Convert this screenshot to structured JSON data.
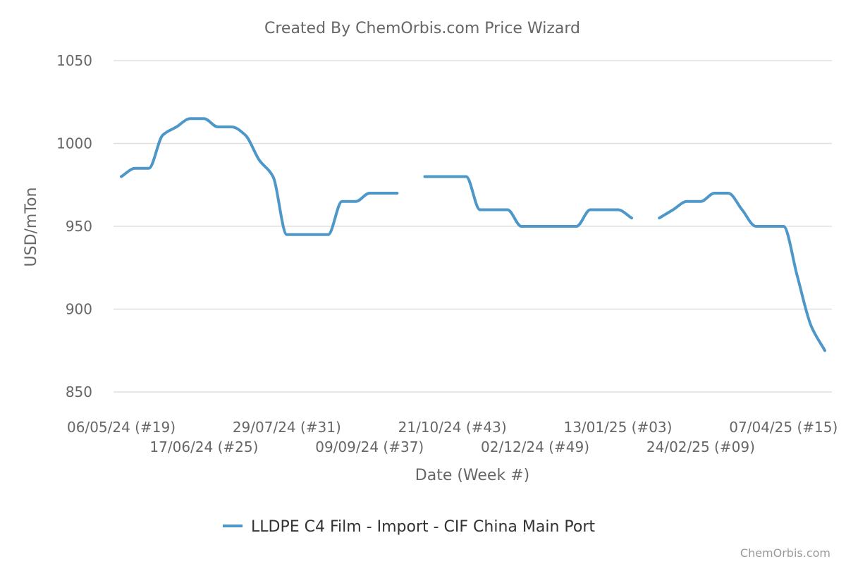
{
  "chart_data": {
    "type": "line",
    "title": "Created By ChemOrbis.com Price Wizard",
    "xlabel": "Date (Week #)",
    "ylabel": "USD/mTon",
    "ylim": [
      850,
      1050
    ],
    "yticks": [
      850,
      900,
      950,
      1000,
      1050
    ],
    "grid": true,
    "legend_position": "bottom",
    "credit": "ChemOrbis.com",
    "x_tick_labels": [
      "06/05/24 (#19)",
      "17/06/24 (#25)",
      "29/07/24 (#31)",
      "09/09/24 (#37)",
      "21/10/24 (#43)",
      "02/12/24 (#49)",
      "13/01/25 (#03)",
      "24/02/25 (#09)",
      "07/04/25 (#15)"
    ],
    "series": [
      {
        "name": "LLDPE C4 Film - Import - CIF China Main Port",
        "color": "#4e97c9",
        "points": [
          {
            "week": "06/05/24 (#19)",
            "value": 980
          },
          {
            "week": "13/05/24 (#20)",
            "value": 985
          },
          {
            "week": "20/05/24 (#21)",
            "value": 985
          },
          {
            "week": "27/05/24 (#22)",
            "value": 1005
          },
          {
            "week": "03/06/24 (#23)",
            "value": 1010
          },
          {
            "week": "10/06/24 (#24)",
            "value": 1015
          },
          {
            "week": "17/06/24 (#25)",
            "value": 1015
          },
          {
            "week": "24/06/24 (#26)",
            "value": 1010
          },
          {
            "week": "01/07/24 (#27)",
            "value": 1010
          },
          {
            "week": "08/07/24 (#28)",
            "value": 1005
          },
          {
            "week": "15/07/24 (#29)",
            "value": 990
          },
          {
            "week": "22/07/24 (#30)",
            "value": 980
          },
          {
            "week": "29/07/24 (#31)",
            "value": 945
          },
          {
            "week": "05/08/24 (#32)",
            "value": 945
          },
          {
            "week": "12/08/24 (#33)",
            "value": 945
          },
          {
            "week": "19/08/24 (#34)",
            "value": 945
          },
          {
            "week": "26/08/24 (#35)",
            "value": 965
          },
          {
            "week": "02/09/24 (#36)",
            "value": 965
          },
          {
            "week": "09/09/24 (#37)",
            "value": 970
          },
          {
            "week": "16/09/24 (#38)",
            "value": 970
          },
          {
            "week": "23/09/24 (#39)",
            "value": 970
          },
          {
            "week": "30/09/24 (#40)",
            "value": null
          },
          {
            "week": "07/10/24 (#41)",
            "value": 980
          },
          {
            "week": "14/10/24 (#42)",
            "value": 980
          },
          {
            "week": "21/10/24 (#43)",
            "value": 980
          },
          {
            "week": "28/10/24 (#44)",
            "value": 980
          },
          {
            "week": "04/11/24 (#45)",
            "value": 960
          },
          {
            "week": "11/11/24 (#46)",
            "value": 960
          },
          {
            "week": "18/11/24 (#47)",
            "value": 960
          },
          {
            "week": "25/11/24 (#48)",
            "value": 950
          },
          {
            "week": "02/12/24 (#49)",
            "value": 950
          },
          {
            "week": "09/12/24 (#50)",
            "value": 950
          },
          {
            "week": "16/12/24 (#51)",
            "value": 950
          },
          {
            "week": "23/12/24 (#52)",
            "value": 950
          },
          {
            "week": "30/12/24 (#01)",
            "value": 960
          },
          {
            "week": "06/01/25 (#02)",
            "value": 960
          },
          {
            "week": "13/01/25 (#03)",
            "value": 960
          },
          {
            "week": "20/01/25 (#04)",
            "value": 955
          },
          {
            "week": "27/01/25 (#05)",
            "value": null
          },
          {
            "week": "03/02/25 (#06)",
            "value": 955
          },
          {
            "week": "10/02/25 (#07)",
            "value": 960
          },
          {
            "week": "17/02/25 (#08)",
            "value": 965
          },
          {
            "week": "24/02/25 (#09)",
            "value": 965
          },
          {
            "week": "03/03/25 (#10)",
            "value": 970
          },
          {
            "week": "10/03/25 (#11)",
            "value": 970
          },
          {
            "week": "17/03/25 (#12)",
            "value": 960
          },
          {
            "week": "24/03/25 (#13)",
            "value": 950
          },
          {
            "week": "31/03/25 (#14)",
            "value": 950
          },
          {
            "week": "07/04/25 (#15)",
            "value": 950
          },
          {
            "week": "14/04/25 (#16)",
            "value": 920
          },
          {
            "week": "21/04/25 (#17)",
            "value": 890
          },
          {
            "week": "28/04/25 (#18)",
            "value": 875
          }
        ]
      }
    ]
  }
}
